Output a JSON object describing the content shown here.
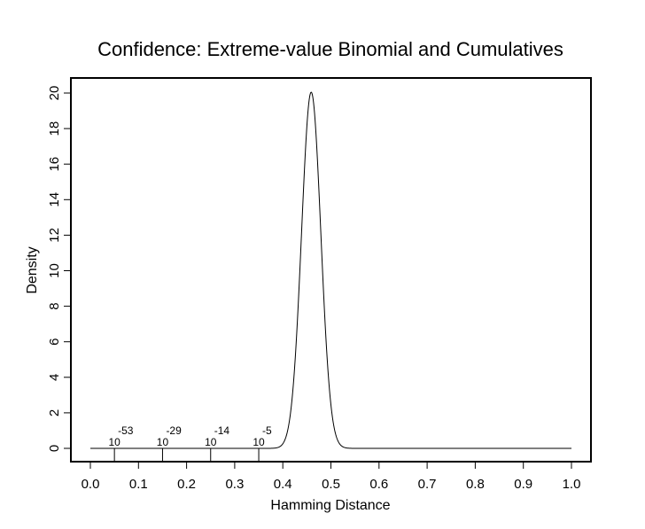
{
  "chart_data": {
    "type": "line",
    "title": "Confidence:  Extreme-value Binomial and Cumulatives",
    "xlabel": "Hamming Distance",
    "ylabel": "Density",
    "xlim": [
      0,
      1
    ],
    "ylim": [
      0,
      20
    ],
    "xticks": [
      "0.0",
      "0.1",
      "0.2",
      "0.3",
      "0.4",
      "0.5",
      "0.6",
      "0.7",
      "0.8",
      "0.9",
      "1.0"
    ],
    "yticks": [
      "0",
      "2",
      "4",
      "6",
      "8",
      "10",
      "12",
      "14",
      "16",
      "18",
      "20"
    ],
    "grid": false,
    "series": [
      {
        "name": "density",
        "distribution": {
          "mean": 0.459,
          "sd": 0.02,
          "peak": 20.05
        },
        "x": [
          0.0,
          0.38,
          0.39,
          0.4,
          0.41,
          0.42,
          0.43,
          0.44,
          0.45,
          0.46,
          0.47,
          0.48,
          0.49,
          0.5,
          0.51,
          0.52,
          0.53,
          1.0
        ],
        "y": [
          0,
          0.008,
          0.052,
          0.26,
          1.0,
          2.99,
          7.0,
          12.74,
          18.08,
          20.0,
          17.2,
          11.5,
          6.0,
          2.45,
          0.78,
          0.19,
          0.04,
          0
        ]
      }
    ],
    "annotations": [
      {
        "x": 0.05,
        "base": "10",
        "exponent": "-53"
      },
      {
        "x": 0.15,
        "base": "10",
        "exponent": "-29"
      },
      {
        "x": 0.25,
        "base": "10",
        "exponent": "-14"
      },
      {
        "x": 0.35,
        "base": "10",
        "exponent": "-5"
      }
    ]
  }
}
